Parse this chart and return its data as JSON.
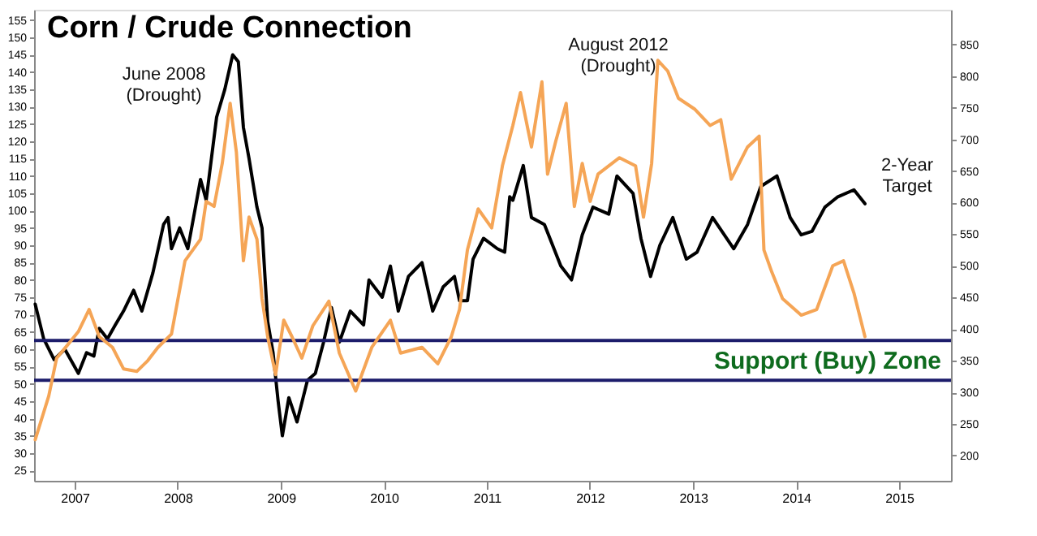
{
  "chart_data": {
    "type": "line",
    "title": "Corn / Crude Connection",
    "xlim": [
      "2006-08-10",
      "2015-07-04"
    ],
    "xticks": [
      "2007",
      "2008",
      "2009",
      "2010",
      "2011",
      "2012",
      "2013",
      "2014",
      "2015"
    ],
    "ylim": [
      22,
      158
    ],
    "yticks": [
      25,
      30,
      35,
      40,
      45,
      50,
      55,
      60,
      65,
      70,
      75,
      80,
      85,
      90,
      95,
      100,
      105,
      110,
      115,
      120,
      125,
      130,
      135,
      140,
      145,
      150,
      155
    ],
    "y2lim": [
      160,
      905
    ],
    "y2ticks": [
      200,
      250,
      300,
      350,
      400,
      450,
      500,
      550,
      600,
      650,
      700,
      750,
      800,
      850
    ],
    "grid": false,
    "series": [
      {
        "color": "#f5a556",
        "axis": "y2",
        "x": [
          "2006-08-14",
          "2006-10-01",
          "2006-10-29",
          "2006-12-07",
          "2007-01-14",
          "2007-02-21",
          "2007-03-29",
          "2007-05-15",
          "2007-06-23",
          "2007-08-09",
          "2007-09-17",
          "2007-10-23",
          "2007-12-10",
          "2008-01-27",
          "2008-03-22",
          "2008-04-11",
          "2008-05-09",
          "2008-06-07",
          "2008-07-05",
          "2008-07-27",
          "2008-08-21",
          "2008-09-10",
          "2008-10-08",
          "2008-10-26",
          "2008-11-15",
          "2008-12-13",
          "2009-01-11",
          "2009-02-09",
          "2009-03-16",
          "2009-04-24",
          "2009-06-20",
          "2009-07-27",
          "2009-09-23",
          "2009-11-19",
          "2010-01-24",
          "2010-03-01",
          "2010-05-16",
          "2010-07-11",
          "2010-08-28",
          "2010-09-26",
          "2010-10-24",
          "2010-12-01",
          "2011-01-18",
          "2011-02-25",
          "2011-04-03",
          "2011-04-30",
          "2011-06-08",
          "2011-07-15",
          "2011-08-04",
          "2011-09-02",
          "2011-10-09",
          "2011-11-07",
          "2011-12-05",
          "2012-01-02",
          "2012-01-30",
          "2012-04-15",
          "2012-06-11",
          "2012-07-09",
          "2012-08-07",
          "2012-08-29",
          "2012-10-03",
          "2012-11-10",
          "2013-01-06",
          "2013-03-02",
          "2013-04-09",
          "2013-05-16",
          "2013-07-13",
          "2013-08-23",
          "2013-09-09",
          "2013-10-07",
          "2013-11-14",
          "2014-01-19",
          "2014-03-15",
          "2014-05-11",
          "2014-06-18",
          "2014-07-25",
          "2014-09-02"
        ],
        "values": [
          225,
          294,
          354,
          375,
          396,
          431,
          388,
          371,
          337,
          333,
          350,
          371,
          392,
          508,
          542,
          602,
          594,
          662,
          757,
          680,
          508,
          577,
          542,
          448,
          388,
          328,
          414,
          388,
          354,
          405,
          444,
          362,
          302,
          371,
          414,
          362,
          371,
          345,
          388,
          431,
          525,
          590,
          560,
          658,
          722,
          774,
          688,
          791,
          645,
          697,
          757,
          594,
          662,
          602,
          645,
          671,
          658,
          577,
          662,
          825,
          808,
          765,
          748,
          722,
          731,
          637,
          688,
          705,
          525,
          490,
          448,
          422,
          431,
          500,
          508,
          457,
          388
        ]
      },
      {
        "color": "#000000",
        "axis": "y",
        "x": [
          "2006-08-14",
          "2006-09-13",
          "2006-10-20",
          "2006-11-27",
          "2007-01-14",
          "2007-02-12",
          "2007-03-10",
          "2007-03-29",
          "2007-04-27",
          "2007-05-25",
          "2007-06-23",
          "2007-07-29",
          "2007-08-27",
          "2007-10-05",
          "2007-11-12",
          "2007-11-28",
          "2007-12-10",
          "2008-01-08",
          "2008-02-06",
          "2008-03-22",
          "2008-04-11",
          "2008-05-18",
          "2008-06-16",
          "2008-07-14",
          "2008-08-03",
          "2008-08-21",
          "2008-09-10",
          "2008-10-08",
          "2008-10-26",
          "2008-11-15",
          "2008-12-04",
          "2008-12-22",
          "2009-01-06",
          "2009-01-29",
          "2009-02-27",
          "2009-04-05",
          "2009-05-03",
          "2009-06-01",
          "2009-06-29",
          "2009-07-27",
          "2009-09-04",
          "2009-10-21",
          "2009-11-09",
          "2009-12-26",
          "2010-01-24",
          "2010-02-21",
          "2010-03-29",
          "2010-05-16",
          "2010-06-23",
          "2010-07-30",
          "2010-09-08",
          "2010-09-26",
          "2010-10-24",
          "2010-11-13",
          "2010-12-20",
          "2011-02-07",
          "2011-03-05",
          "2011-03-23",
          "2011-04-03",
          "2011-05-10",
          "2011-06-08",
          "2011-07-24",
          "2011-09-20",
          "2011-10-28",
          "2011-12-05",
          "2012-01-12",
          "2012-03-08",
          "2012-04-06",
          "2012-06-02",
          "2012-06-30",
          "2012-08-03",
          "2012-09-05",
          "2012-10-21",
          "2012-12-08",
          "2013-01-15",
          "2013-03-11",
          "2013-05-25",
          "2013-07-13",
          "2013-08-29",
          "2013-10-25",
          "2013-12-11",
          "2014-01-19",
          "2014-02-26",
          "2014-04-13",
          "2014-05-29",
          "2014-07-25",
          "2014-09-02"
        ],
        "values": [
          73,
          63,
          57,
          60,
          53,
          59,
          58,
          66,
          63,
          67,
          71,
          77,
          71,
          82,
          96,
          98,
          89,
          95,
          89,
          109,
          103,
          127,
          135,
          145,
          143,
          124,
          115,
          101,
          95,
          68,
          59,
          45,
          35,
          46,
          39,
          51,
          53,
          62,
          72,
          62,
          71,
          67,
          80,
          75,
          84,
          71,
          81,
          85,
          71,
          78,
          81,
          74,
          74,
          86,
          92,
          89,
          88,
          104,
          103,
          113,
          98,
          96,
          84,
          80,
          93,
          101,
          99,
          110,
          105,
          92,
          81,
          90,
          98,
          86,
          88,
          98,
          89,
          96,
          107,
          110,
          98,
          93,
          94,
          101,
          104,
          106,
          102
        ]
      }
    ],
    "ref_lines": [
      {
        "axis": "y",
        "value": 62.5,
        "color": "#1c1c6b"
      },
      {
        "axis": "y",
        "value": 51,
        "color": "#1c1c6b",
        "label": "Support (Buy) Zone"
      }
    ],
    "annotations": [
      "June 2008\n(Drought)",
      "August 2012\n(Drought)",
      "2-Year\nTarget"
    ]
  }
}
